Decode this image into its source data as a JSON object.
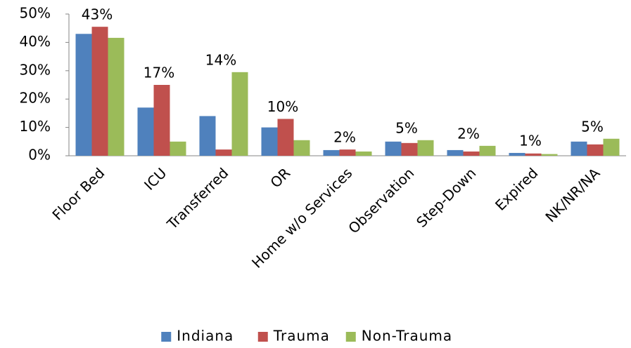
{
  "chart_data": {
    "type": "bar",
    "categories": [
      "Floor Bed",
      "ICU",
      "Transferred",
      "OR",
      "Home w/o Services",
      "Observation",
      "Step-Down",
      "Expired",
      "NK/NR/NA"
    ],
    "series": [
      {
        "name": "Indiana",
        "color": "#4f81bd",
        "values": [
          43,
          17,
          14,
          10,
          2,
          5,
          2,
          1,
          5
        ],
        "value_labels": [
          "43%",
          "17%",
          "14%",
          "10%",
          "2%",
          "5%",
          "2%",
          "1%",
          "5%"
        ]
      },
      {
        "name": "Trauma",
        "color": "#c0504d",
        "values": [
          45.5,
          25,
          2.2,
          13,
          2.2,
          4.5,
          1.5,
          0.8,
          4
        ]
      },
      {
        "name": "Non-Trauma",
        "color": "#9bbb59",
        "values": [
          41.6,
          5,
          29.5,
          5.5,
          1.5,
          5.5,
          3.5,
          0.6,
          6
        ]
      }
    ],
    "ylim": [
      0,
      50
    ],
    "yticks": [
      {
        "value": 0,
        "label": "0%"
      },
      {
        "value": 10,
        "label": "10%"
      },
      {
        "value": 20,
        "label": "20%"
      },
      {
        "value": 30,
        "label": "30%"
      },
      {
        "value": 40,
        "label": "40%"
      },
      {
        "value": 50,
        "label": "50%"
      }
    ],
    "grid": false,
    "legend": "bottom"
  }
}
